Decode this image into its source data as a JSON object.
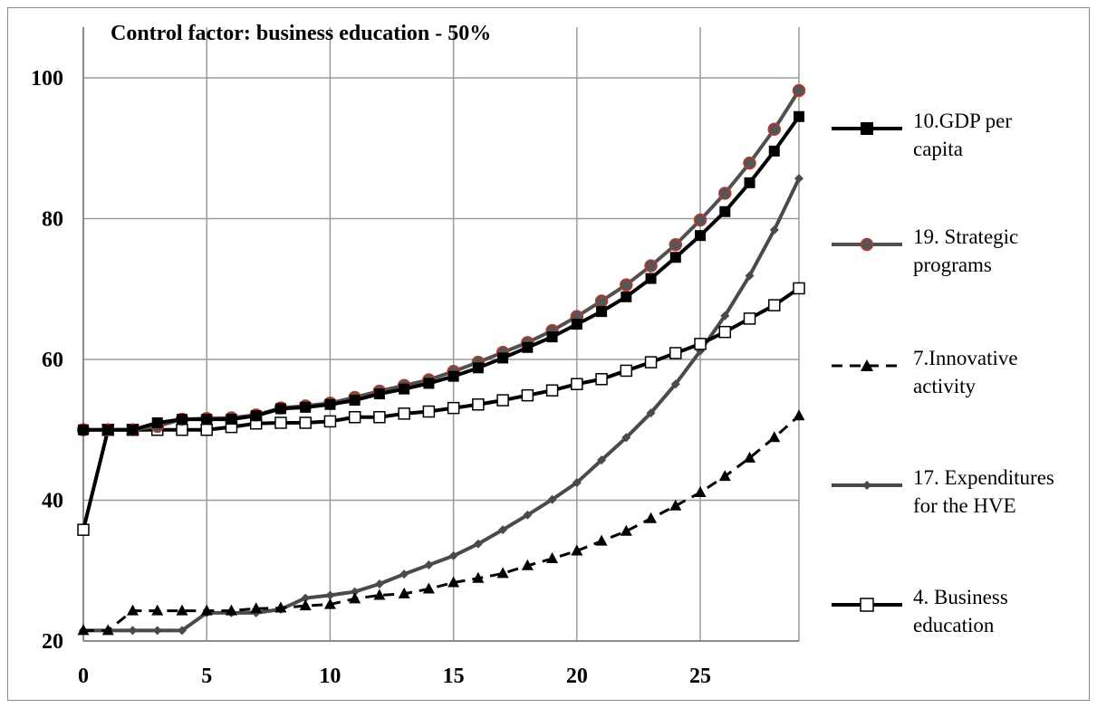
{
  "chart_data": {
    "type": "line",
    "title": "Control factor: business education - 50%",
    "xlabel": "",
    "ylabel": "",
    "xlim": [
      0,
      29
    ],
    "ylim": [
      20,
      100
    ],
    "xticks": [
      0,
      5,
      10,
      15,
      20,
      25
    ],
    "yticks": [
      20,
      40,
      60,
      80,
      100
    ],
    "grid": true,
    "legend_position": "right",
    "x": [
      0,
      1,
      2,
      3,
      4,
      5,
      6,
      7,
      8,
      9,
      10,
      11,
      12,
      13,
      14,
      15,
      16,
      17,
      18,
      19,
      20,
      21,
      22,
      23,
      24,
      25,
      26,
      27,
      28,
      29
    ],
    "series": [
      {
        "name": "10.GDP per capita",
        "color": "#000000",
        "marker": "square-filled",
        "dash": false,
        "values": [
          50,
          50,
          50,
          51,
          51.5,
          51.5,
          51.5,
          52,
          53,
          53.2,
          53.6,
          54.2,
          55.1,
          55.8,
          56.6,
          57.6,
          58.8,
          60.2,
          61.7,
          63.2,
          65,
          66.8,
          68.9,
          71.5,
          74.5,
          77.6,
          81,
          85.1,
          89.6,
          94.5
        ]
      },
      {
        "name": "19. Strategic programs",
        "color": "#505050",
        "marker": "circle-red",
        "dash": false,
        "values": [
          50,
          50,
          50,
          50.5,
          51.5,
          51.6,
          51.7,
          52.1,
          53.1,
          53.4,
          53.8,
          54.6,
          55.5,
          56.3,
          57.1,
          58.3,
          59.6,
          61,
          62.4,
          64.1,
          66.1,
          68.3,
          70.6,
          73.3,
          76.3,
          79.8,
          83.6,
          87.9,
          92.7,
          98.2
        ]
      },
      {
        "name": "7.Innovative activity",
        "color": "#000000",
        "marker": "triangle",
        "dash": true,
        "values": [
          21.5,
          21.5,
          24.3,
          24.3,
          24.3,
          24.3,
          24.3,
          24.6,
          24.7,
          25,
          25.2,
          26,
          26.5,
          26.7,
          27.4,
          28.3,
          28.9,
          29.6,
          30.7,
          31.7,
          32.8,
          34.2,
          35.6,
          37.4,
          39.2,
          41.1,
          43.4,
          46,
          48.9,
          52
        ]
      },
      {
        "name": "17. Expenditures for the HVE",
        "color": "#4a4a4a",
        "marker": "diamond",
        "dash": false,
        "values": [
          21.5,
          21.5,
          21.5,
          21.5,
          21.5,
          24,
          24,
          24,
          24.5,
          26.1,
          26.5,
          27,
          28.1,
          29.5,
          30.8,
          32.1,
          33.8,
          35.8,
          37.9,
          40.1,
          42.5,
          45.7,
          48.9,
          52.4,
          56.5,
          61.2,
          66.2,
          71.9,
          78.4,
          85.7
        ]
      },
      {
        "name": "4. Business education",
        "color": "#000000",
        "marker": "square-open",
        "dash": false,
        "values": [
          35.8,
          50,
          50,
          50,
          50,
          50,
          50.4,
          50.9,
          51,
          51,
          51.2,
          51.8,
          51.8,
          52.3,
          52.6,
          53.1,
          53.6,
          54.2,
          54.9,
          55.6,
          56.5,
          57.2,
          58.4,
          59.6,
          60.9,
          62.2,
          63.9,
          65.8,
          67.7,
          70.1
        ]
      }
    ]
  },
  "legend": {
    "items": [
      {
        "label": "10.GDP per\ncapita"
      },
      {
        "label": "19. Strategic\nprograms"
      },
      {
        "label": "7.Innovative\nactivity"
      },
      {
        "label": "17. Expenditures\nfor the HVE"
      },
      {
        "label": "4. Business\neducation"
      }
    ]
  }
}
